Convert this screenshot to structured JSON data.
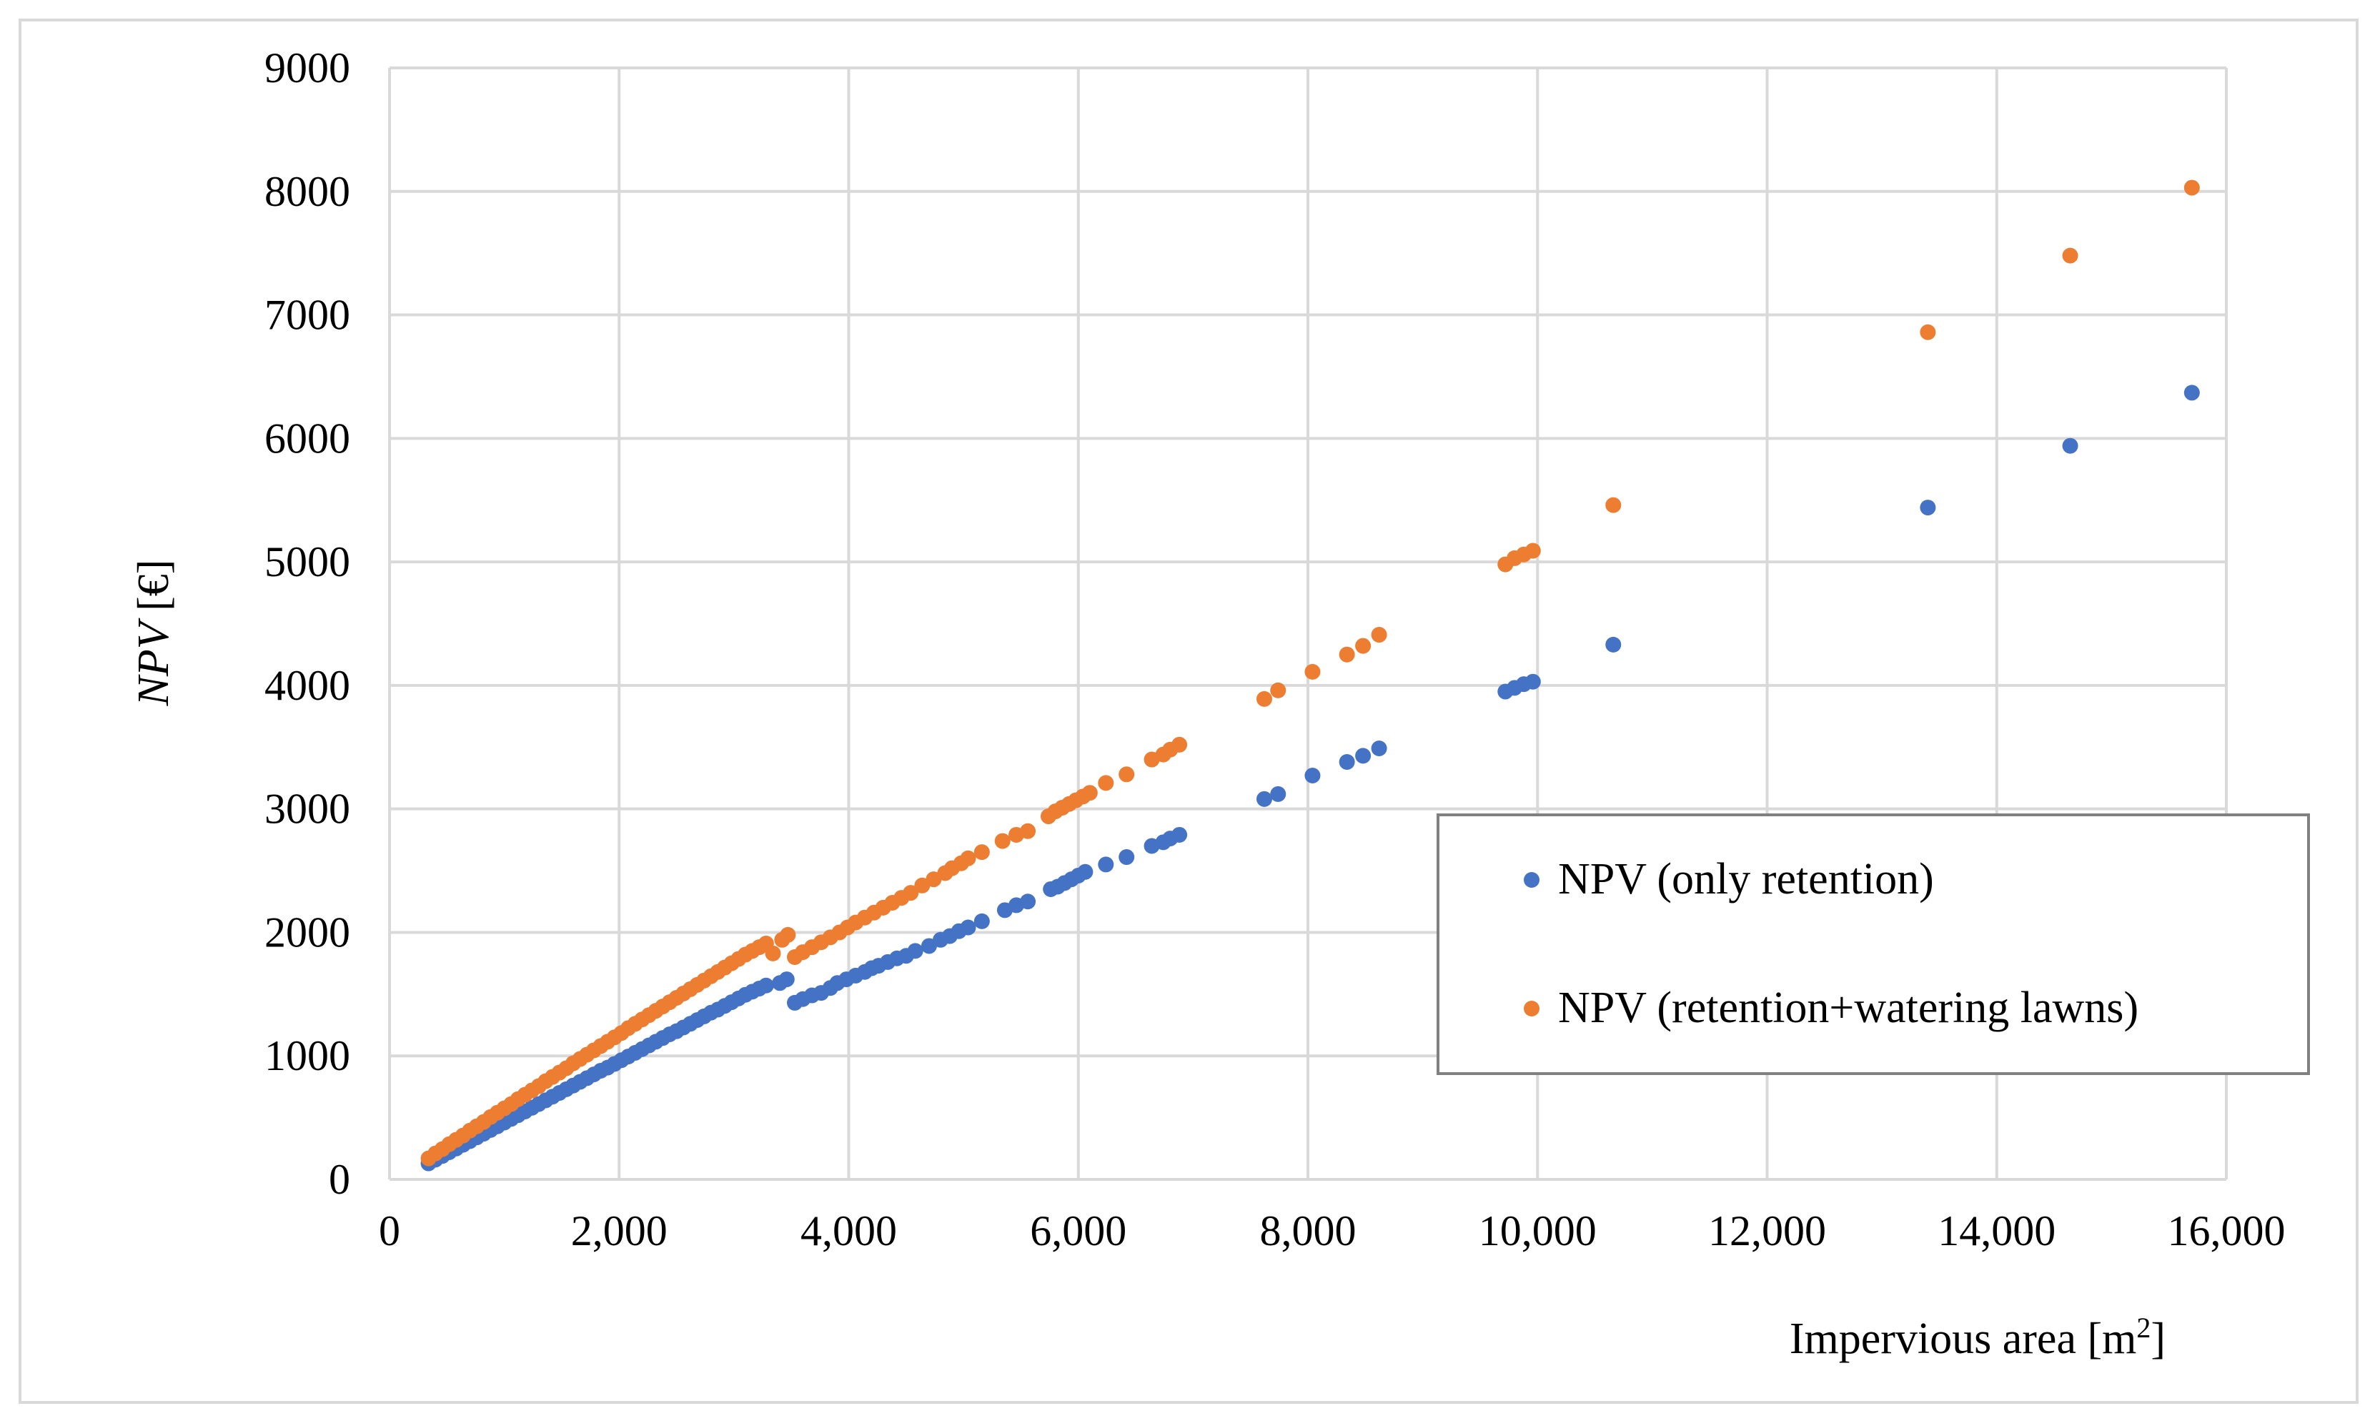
{
  "chart_data": {
    "type": "scatter",
    "xlabel": "Impervious area [m",
    "xlabel_sup": "2",
    "xlabel_end": "]",
    "ylabel_italic": "NPV",
    "ylabel_rest": " [€]",
    "xlim": [
      0,
      16000
    ],
    "ylim": [
      0,
      9000
    ],
    "x_ticks": [
      0,
      2000,
      4000,
      6000,
      8000,
      10000,
      12000,
      14000,
      16000
    ],
    "x_tick_labels": [
      "0",
      "2,000",
      "4,000",
      "6,000",
      "8,000",
      "10,000",
      "12,000",
      "14,000",
      "16,000"
    ],
    "y_ticks": [
      0,
      1000,
      2000,
      3000,
      4000,
      5000,
      6000,
      7000,
      8000,
      9000
    ],
    "y_tick_labels": [
      "0",
      "1000",
      "2000",
      "3000",
      "4000",
      "5000",
      "6000",
      "7000",
      "8000",
      "9000"
    ],
    "grid": true,
    "legend_position": "right-center",
    "series": [
      {
        "name": "NPV (only retention)",
        "color": "#4472c4",
        "points": [
          [
            340,
            130
          ],
          [
            400,
            160
          ],
          [
            460,
            190
          ],
          [
            520,
            220
          ],
          [
            580,
            250
          ],
          [
            640,
            280
          ],
          [
            700,
            310
          ],
          [
            760,
            340
          ],
          [
            820,
            370
          ],
          [
            880,
            400
          ],
          [
            940,
            430
          ],
          [
            1000,
            460
          ],
          [
            1060,
            490
          ],
          [
            1120,
            520
          ],
          [
            1180,
            550
          ],
          [
            1240,
            580
          ],
          [
            1300,
            610
          ],
          [
            1360,
            640
          ],
          [
            1420,
            670
          ],
          [
            1480,
            700
          ],
          [
            1540,
            730
          ],
          [
            1600,
            760
          ],
          [
            1660,
            790
          ],
          [
            1720,
            820
          ],
          [
            1780,
            850
          ],
          [
            1840,
            880
          ],
          [
            1900,
            905
          ],
          [
            1960,
            935
          ],
          [
            2020,
            965
          ],
          [
            2080,
            995
          ],
          [
            2140,
            1025
          ],
          [
            2200,
            1055
          ],
          [
            2260,
            1085
          ],
          [
            2320,
            1115
          ],
          [
            2380,
            1145
          ],
          [
            2440,
            1175
          ],
          [
            2500,
            1200
          ],
          [
            2560,
            1230
          ],
          [
            2620,
            1260
          ],
          [
            2680,
            1290
          ],
          [
            2740,
            1320
          ],
          [
            2800,
            1350
          ],
          [
            2860,
            1375
          ],
          [
            2920,
            1405
          ],
          [
            2980,
            1435
          ],
          [
            3040,
            1465
          ],
          [
            3100,
            1495
          ],
          [
            3160,
            1520
          ],
          [
            3220,
            1545
          ],
          [
            3280,
            1570
          ],
          [
            3400,
            1590
          ],
          [
            3460,
            1620
          ],
          [
            3530,
            1430
          ],
          [
            3600,
            1460
          ],
          [
            3680,
            1490
          ],
          [
            3760,
            1510
          ],
          [
            3840,
            1550
          ],
          [
            3900,
            1590
          ],
          [
            3980,
            1620
          ],
          [
            4060,
            1650
          ],
          [
            4140,
            1680
          ],
          [
            4200,
            1710
          ],
          [
            4260,
            1730
          ],
          [
            4340,
            1760
          ],
          [
            4420,
            1790
          ],
          [
            4500,
            1810
          ],
          [
            4580,
            1850
          ],
          [
            4700,
            1890
          ],
          [
            4800,
            1940
          ],
          [
            4880,
            1970
          ],
          [
            4960,
            2010
          ],
          [
            5040,
            2040
          ],
          [
            5160,
            2090
          ],
          [
            5360,
            2180
          ],
          [
            5460,
            2220
          ],
          [
            5560,
            2250
          ],
          [
            5760,
            2350
          ],
          [
            5820,
            2370
          ],
          [
            5880,
            2400
          ],
          [
            5940,
            2430
          ],
          [
            6000,
            2460
          ],
          [
            6060,
            2490
          ],
          [
            6240,
            2550
          ],
          [
            6420,
            2610
          ],
          [
            6640,
            2700
          ],
          [
            6740,
            2730
          ],
          [
            6800,
            2760
          ],
          [
            6880,
            2790
          ],
          [
            7620,
            3080
          ],
          [
            7740,
            3120
          ],
          [
            8040,
            3270
          ],
          [
            8340,
            3380
          ],
          [
            8480,
            3430
          ],
          [
            8620,
            3490
          ],
          [
            9720,
            3950
          ],
          [
            9800,
            3980
          ],
          [
            9880,
            4010
          ],
          [
            9960,
            4030
          ],
          [
            10660,
            4330
          ],
          [
            13400,
            5440
          ],
          [
            14640,
            5940
          ],
          [
            15700,
            6370
          ]
        ]
      },
      {
        "name": "NPV (retention+watering lawns)",
        "color": "#ed7d31",
        "points": [
          [
            340,
            170
          ],
          [
            400,
            210
          ],
          [
            460,
            245
          ],
          [
            520,
            285
          ],
          [
            580,
            320
          ],
          [
            640,
            355
          ],
          [
            700,
            395
          ],
          [
            760,
            430
          ],
          [
            820,
            465
          ],
          [
            880,
            505
          ],
          [
            940,
            540
          ],
          [
            1000,
            575
          ],
          [
            1060,
            610
          ],
          [
            1120,
            650
          ],
          [
            1180,
            685
          ],
          [
            1240,
            720
          ],
          [
            1300,
            755
          ],
          [
            1360,
            795
          ],
          [
            1420,
            830
          ],
          [
            1480,
            865
          ],
          [
            1540,
            900
          ],
          [
            1600,
            940
          ],
          [
            1660,
            975
          ],
          [
            1720,
            1010
          ],
          [
            1780,
            1045
          ],
          [
            1840,
            1080
          ],
          [
            1900,
            1115
          ],
          [
            1960,
            1150
          ],
          [
            2020,
            1185
          ],
          [
            2080,
            1225
          ],
          [
            2140,
            1260
          ],
          [
            2200,
            1295
          ],
          [
            2260,
            1330
          ],
          [
            2320,
            1365
          ],
          [
            2380,
            1400
          ],
          [
            2440,
            1435
          ],
          [
            2500,
            1470
          ],
          [
            2560,
            1505
          ],
          [
            2620,
            1540
          ],
          [
            2680,
            1575
          ],
          [
            2740,
            1610
          ],
          [
            2800,
            1645
          ],
          [
            2860,
            1680
          ],
          [
            2920,
            1715
          ],
          [
            2980,
            1750
          ],
          [
            3040,
            1785
          ],
          [
            3100,
            1820
          ],
          [
            3160,
            1850
          ],
          [
            3220,
            1880
          ],
          [
            3280,
            1910
          ],
          [
            3340,
            1830
          ],
          [
            3420,
            1940
          ],
          [
            3470,
            1980
          ],
          [
            3530,
            1800
          ],
          [
            3600,
            1840
          ],
          [
            3680,
            1880
          ],
          [
            3760,
            1920
          ],
          [
            3840,
            1960
          ],
          [
            3920,
            2000
          ],
          [
            3990,
            2040
          ],
          [
            4060,
            2080
          ],
          [
            4140,
            2120
          ],
          [
            4220,
            2160
          ],
          [
            4300,
            2200
          ],
          [
            4380,
            2240
          ],
          [
            4460,
            2280
          ],
          [
            4540,
            2320
          ],
          [
            4640,
            2380
          ],
          [
            4740,
            2430
          ],
          [
            4840,
            2480
          ],
          [
            4900,
            2520
          ],
          [
            4980,
            2560
          ],
          [
            5040,
            2600
          ],
          [
            5160,
            2650
          ],
          [
            5340,
            2740
          ],
          [
            5460,
            2790
          ],
          [
            5560,
            2820
          ],
          [
            5740,
            2940
          ],
          [
            5800,
            2980
          ],
          [
            5860,
            3010
          ],
          [
            5920,
            3040
          ],
          [
            5980,
            3070
          ],
          [
            6040,
            3100
          ],
          [
            6100,
            3130
          ],
          [
            6240,
            3210
          ],
          [
            6420,
            3280
          ],
          [
            6640,
            3400
          ],
          [
            6740,
            3440
          ],
          [
            6800,
            3480
          ],
          [
            6880,
            3520
          ],
          [
            7620,
            3890
          ],
          [
            7740,
            3960
          ],
          [
            8040,
            4110
          ],
          [
            8340,
            4250
          ],
          [
            8480,
            4320
          ],
          [
            8620,
            4410
          ],
          [
            9720,
            4980
          ],
          [
            9800,
            5030
          ],
          [
            9880,
            5060
          ],
          [
            9960,
            5090
          ],
          [
            10660,
            5460
          ],
          [
            13400,
            6860
          ],
          [
            14640,
            7480
          ],
          [
            15700,
            8030
          ]
        ]
      }
    ]
  }
}
